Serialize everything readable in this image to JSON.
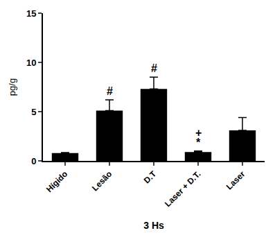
{
  "chart_data": {
    "type": "bar",
    "categories": [
      "Hígido",
      "Lesão",
      "D.T",
      "Laser + D.T.",
      "Laser"
    ],
    "values": [
      0.8,
      5.1,
      7.3,
      0.9,
      3.1
    ],
    "errors": [
      0.05,
      1.1,
      1.2,
      0.1,
      1.3
    ],
    "color": "#000000",
    "x_label": "3 Hs",
    "y_label": "pg/g",
    "ylim": [
      0,
      15
    ],
    "yticks": [
      0,
      5,
      10,
      15
    ],
    "grid": false,
    "annotations": [
      {
        "category": "Lesão",
        "text": "#"
      },
      {
        "category": "D.T",
        "text": "#"
      },
      {
        "category": "Laser + D.T.",
        "text": "*"
      },
      {
        "category": "Laser + D.T.",
        "text": "+"
      }
    ]
  }
}
